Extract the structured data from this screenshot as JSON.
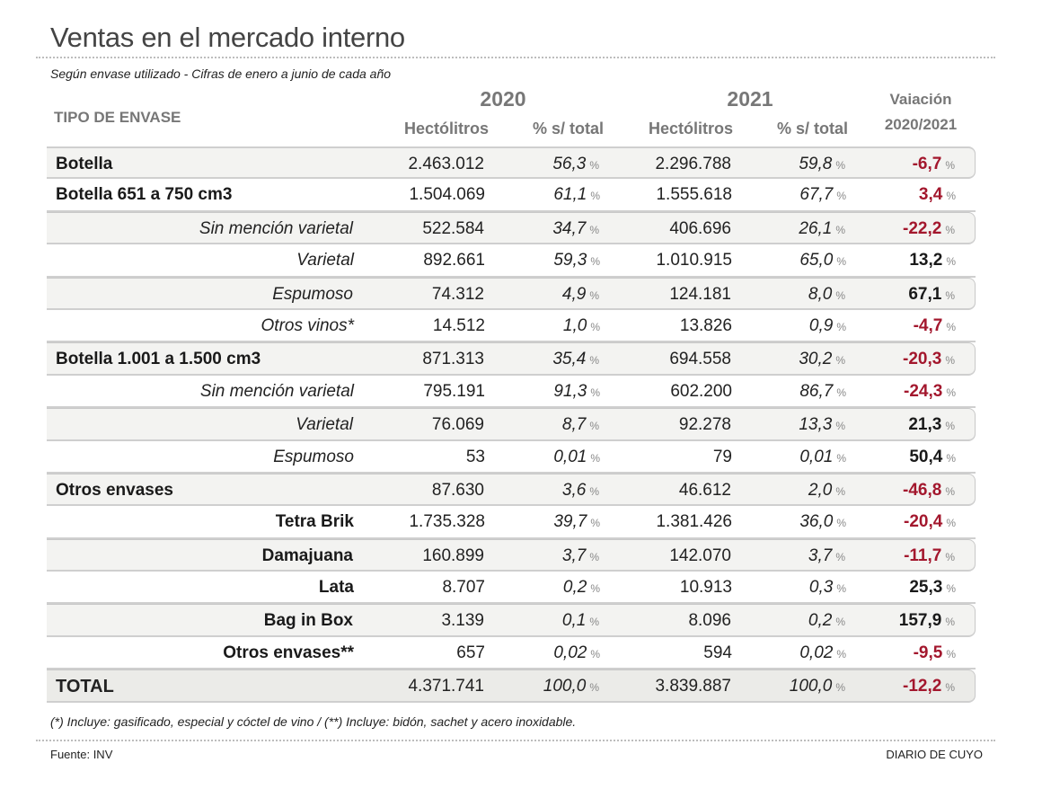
{
  "title": "Ventas en el mercado interno",
  "subtitle": "Según envase utilizado - Cifras de enero a junio de cada año",
  "header": {
    "tipo": "TIPO DE ENVASE",
    "year1": "2020",
    "year2": "2021",
    "hectolitros": "Hectólitros",
    "pct_total": "% s/ total",
    "variacion_line1": "Vaiación",
    "variacion_line2": "2020/2021",
    "pct_unit": "%"
  },
  "colors": {
    "negative": "#a3172d",
    "header": "#777777",
    "shade": "#f3f3f1"
  },
  "rows": [
    {
      "label": "Botella",
      "style": "main",
      "shade": true,
      "hl2020": "2.463.012",
      "pct2020": "56,3",
      "hl2021": "2.296.788",
      "pct2021": "59,8",
      "var": "-6,7",
      "neg": true
    },
    {
      "label": "Botella 651 a 750 cm3",
      "style": "main",
      "shade": false,
      "hl2020": "1.504.069",
      "pct2020": "61,1",
      "hl2021": "1.555.618",
      "pct2021": "67,7",
      "var": "3,4",
      "neg": true
    },
    {
      "label": "Sin mención varietal",
      "style": "sub-italic",
      "shade": true,
      "hl2020": "522.584",
      "pct2020": "34,7",
      "hl2021": "406.696",
      "pct2021": "26,1",
      "var": "-22,2",
      "neg": true
    },
    {
      "label": "Varietal",
      "style": "sub-italic",
      "shade": false,
      "hl2020": "892.661",
      "pct2020": "59,3",
      "hl2021": "1.010.915",
      "pct2021": "65,0",
      "var": "13,2",
      "neg": false
    },
    {
      "label": "Espumoso",
      "style": "sub-italic",
      "shade": true,
      "hl2020": "74.312",
      "pct2020": "4,9",
      "hl2021": "124.181",
      "pct2021": "8,0",
      "var": "67,1",
      "neg": false
    },
    {
      "label": "Otros vinos*",
      "style": "sub-italic",
      "shade": false,
      "hl2020": "14.512",
      "pct2020": "1,0",
      "hl2021": "13.826",
      "pct2021": "0,9",
      "var": "-4,7",
      "neg": true
    },
    {
      "label": "Botella 1.001 a 1.500 cm3",
      "style": "main",
      "shade": true,
      "hl2020": "871.313",
      "pct2020": "35,4",
      "hl2021": "694.558",
      "pct2021": "30,2",
      "var": "-20,3",
      "neg": true
    },
    {
      "label": "Sin mención varietal",
      "style": "sub-italic",
      "shade": false,
      "hl2020": "795.191",
      "pct2020": "91,3",
      "hl2021": "602.200",
      "pct2021": "86,7",
      "var": "-24,3",
      "neg": true
    },
    {
      "label": "Varietal",
      "style": "sub-italic",
      "shade": true,
      "hl2020": "76.069",
      "pct2020": "8,7",
      "hl2021": "92.278",
      "pct2021": "13,3",
      "var": "21,3",
      "neg": false
    },
    {
      "label": "Espumoso",
      "style": "sub-italic",
      "shade": false,
      "hl2020": "53",
      "pct2020": "0,01",
      "hl2021": "79",
      "pct2021": "0,01",
      "var": "50,4",
      "neg": false
    },
    {
      "label": "Otros envases",
      "style": "main",
      "shade": true,
      "hl2020": "87.630",
      "pct2020": "3,6",
      "hl2021": "46.612",
      "pct2021": "2,0",
      "var": "-46,8",
      "neg": true
    },
    {
      "label": "Tetra Brik",
      "style": "sub-bold",
      "shade": false,
      "hl2020": "1.735.328",
      "pct2020": "39,7",
      "hl2021": "1.381.426",
      "pct2021": "36,0",
      "var": "-20,4",
      "neg": true
    },
    {
      "label": "Damajuana",
      "style": "sub-bold",
      "shade": true,
      "hl2020": "160.899",
      "pct2020": "3,7",
      "hl2021": "142.070",
      "pct2021": "3,7",
      "var": "-11,7",
      "neg": true
    },
    {
      "label": "Lata",
      "style": "sub-bold",
      "shade": false,
      "hl2020": "8.707",
      "pct2020": "0,2",
      "hl2021": "10.913",
      "pct2021": "0,3",
      "var": "25,3",
      "neg": false
    },
    {
      "label": "Bag in Box",
      "style": "sub-bold",
      "shade": true,
      "hl2020": "3.139",
      "pct2020": "0,1",
      "hl2021": "8.096",
      "pct2021": "0,2",
      "var": "157,9",
      "neg": false
    },
    {
      "label": "Otros envases**",
      "style": "sub-bold",
      "shade": false,
      "hl2020": "657",
      "pct2020": "0,02",
      "hl2021": "594",
      "pct2021": "0,02",
      "var": "-9,5",
      "neg": true
    },
    {
      "label": "TOTAL",
      "style": "total-lbl",
      "shade": "total",
      "hl2020": "4.371.741",
      "pct2020": "100,0",
      "hl2021": "3.839.887",
      "pct2021": "100,0",
      "var": "-12,2",
      "neg": true
    }
  ],
  "footnote": "(*) Incluye: gasificado, especial y cóctel de vino  /  (**) Incluye: bidón, sachet y acero inoxidable.",
  "source": "Fuente: INV",
  "brand": "DIARIO DE CUYO"
}
